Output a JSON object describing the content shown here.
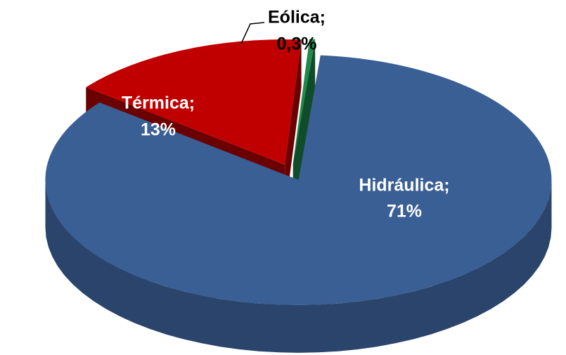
{
  "chart_data": {
    "type": "pie3d",
    "categories": [
      "Hidráulica;",
      "Térmica;",
      "Eólica;"
    ],
    "values": [
      71,
      13,
      0.3
    ],
    "value_labels": [
      "71%",
      "13%",
      "0,3%"
    ],
    "colors": [
      "#3a5f95",
      "#c00000",
      "#1f8a4c"
    ],
    "label_colors": [
      "#ffffff",
      "#ffffff",
      "#000000"
    ]
  }
}
